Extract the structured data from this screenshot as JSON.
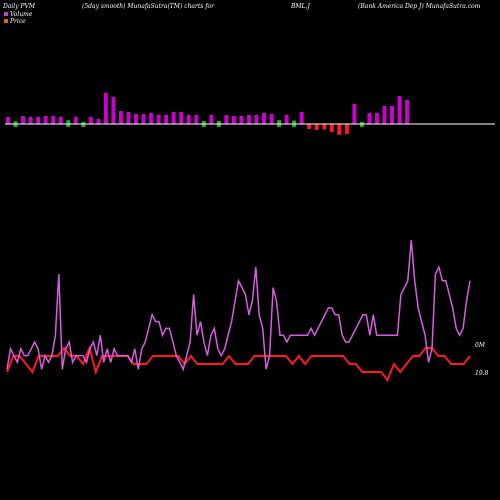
{
  "header": {
    "left": "Daily PVM",
    "center_left": "(5day smooth) MunafaSutra(TM) charts for",
    "ticker": "BML.J",
    "right": "(Bank America  Dep J) MunafaSutra.com"
  },
  "legend": {
    "volume": "Volume",
    "price": "Price",
    "volume_color": "#c23bd6",
    "price_color": "#e0651a"
  },
  "colors": {
    "background": "#000000",
    "volume_up": "#cc00cc",
    "volume_down": "#ff1a1a",
    "volume_flat": "#22aa22",
    "volume_line": "#d85be0",
    "price_line": "#ff1a1a",
    "baseline": "#ffffff"
  },
  "chart_data": {
    "type": "line",
    "labels": {
      "volume_end": "0M",
      "price_end": "19.8"
    },
    "bars": {
      "heights": [
        7,
        8,
        8,
        7,
        7,
        8,
        8,
        7,
        11,
        7,
        6,
        7,
        5,
        31,
        27,
        13,
        12,
        10,
        10,
        11,
        9,
        9,
        12,
        12,
        9,
        9,
        9,
        9,
        9,
        9,
        8,
        8,
        9,
        9,
        11,
        10,
        11,
        9,
        10,
        12,
        11,
        13,
        12,
        18,
        24,
        22,
        20,
        6,
        11,
        11,
        18,
        18,
        28,
        24
      ],
      "colors": [
        "up",
        "flat",
        "up",
        "up",
        "up",
        "up",
        "up",
        "up",
        "flat",
        "up",
        "flat",
        "up",
        "up",
        "up",
        "up",
        "up",
        "up",
        "up",
        "up",
        "up",
        "up",
        "up",
        "up",
        "up",
        "up",
        "up",
        "flat",
        "up",
        "flat",
        "up",
        "up",
        "up",
        "up",
        "up",
        "up",
        "up",
        "flat",
        "up",
        "flat",
        "up",
        "down",
        "down",
        "down",
        "down",
        "down",
        "down",
        "up",
        "flat",
        "up",
        "up",
        "up",
        "up",
        "up",
        "up"
      ]
    },
    "series": [
      {
        "values": [
          1,
          3,
          3,
          2,
          1,
          3,
          3,
          3,
          3,
          4,
          3,
          3,
          2,
          4,
          1,
          3,
          3,
          3,
          3,
          3,
          2,
          2,
          2,
          3,
          3,
          3,
          3,
          3,
          2,
          3,
          2,
          2,
          2,
          2,
          2,
          3,
          2,
          2,
          2,
          3,
          3,
          3,
          3,
          3,
          3,
          2,
          3,
          2,
          3,
          3,
          3,
          3,
          3,
          3,
          2,
          2,
          1,
          1,
          1,
          1,
          0,
          2,
          1,
          2,
          3,
          3,
          4,
          4,
          3,
          3,
          2,
          2,
          2,
          3
        ]
      },
      {
        "values": [
          1,
          4,
          3,
          2,
          4,
          3,
          3,
          4,
          5,
          4,
          1,
          3,
          2,
          3,
          6,
          15,
          1,
          4,
          5,
          2,
          3,
          3,
          3,
          2,
          4,
          5,
          3,
          6,
          2,
          4,
          2,
          4,
          3,
          3,
          3,
          3,
          2,
          4,
          1,
          4,
          5,
          7,
          9,
          8,
          8,
          6,
          7,
          7,
          5,
          3,
          2,
          1,
          3,
          5,
          12,
          6,
          8,
          5,
          3,
          6,
          7,
          4,
          3,
          4,
          6,
          8,
          11,
          14,
          13,
          12,
          9,
          11,
          16,
          9,
          7,
          1,
          3,
          13,
          11,
          6,
          6,
          5,
          6,
          6,
          6,
          6,
          6,
          6,
          7,
          6,
          7,
          8,
          9,
          10,
          10,
          9,
          9,
          6,
          5,
          5,
          6,
          7,
          8,
          9,
          9,
          6,
          9,
          6,
          6,
          6,
          6,
          6,
          6,
          6,
          12,
          13,
          14,
          20,
          14,
          10,
          8,
          6,
          2,
          4,
          15,
          16,
          14,
          14,
          12,
          10,
          7,
          6,
          7,
          11,
          14
        ]
      }
    ]
  }
}
